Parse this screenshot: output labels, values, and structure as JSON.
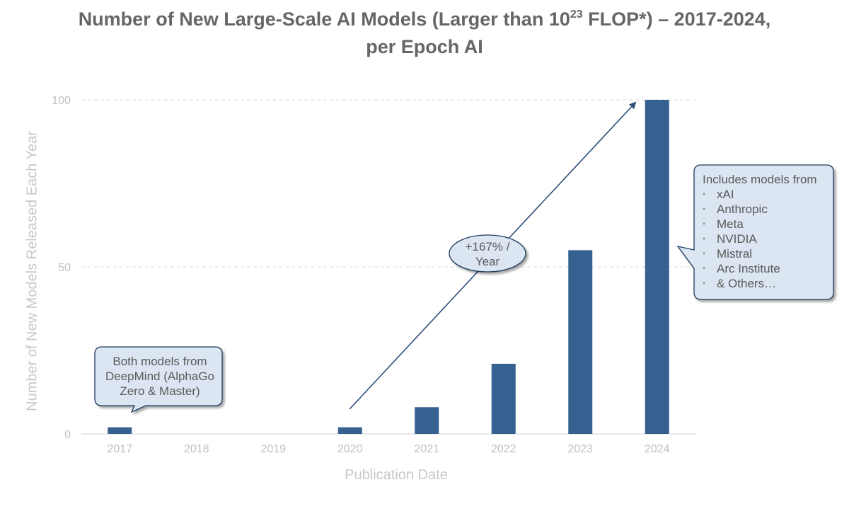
{
  "chart_data": {
    "type": "bar",
    "title_main": "Number of New Large-Scale AI Models (Larger than 10",
    "title_sup": "23",
    "title_tail": " FLOP*) – 2017-2024,",
    "title_line2": "per Epoch AI",
    "xlabel": "Publication Date",
    "ylabel": "Number of New Models Released Each Year",
    "categories": [
      "2017",
      "2018",
      "2019",
      "2020",
      "2021",
      "2022",
      "2023",
      "2024"
    ],
    "values": [
      2,
      0,
      0,
      2,
      8,
      21,
      55,
      100
    ],
    "ylim": [
      0,
      100
    ],
    "yticks": [
      0,
      50,
      100
    ],
    "grid": "horizontal dashed",
    "bar_color": "#36608f",
    "growth_label_line1": "+167% /",
    "growth_label_line2": "Year",
    "callout_2017": {
      "line1": "Both models from",
      "line2": "DeepMind (AlphaGo",
      "line3": "Zero & Master)"
    },
    "callout_2024": {
      "heading": "Includes models from",
      "items": [
        "xAI",
        "Anthropic",
        "Meta",
        "NVIDIA",
        "Mistral",
        "Arc Institute",
        "& Others…"
      ]
    }
  }
}
